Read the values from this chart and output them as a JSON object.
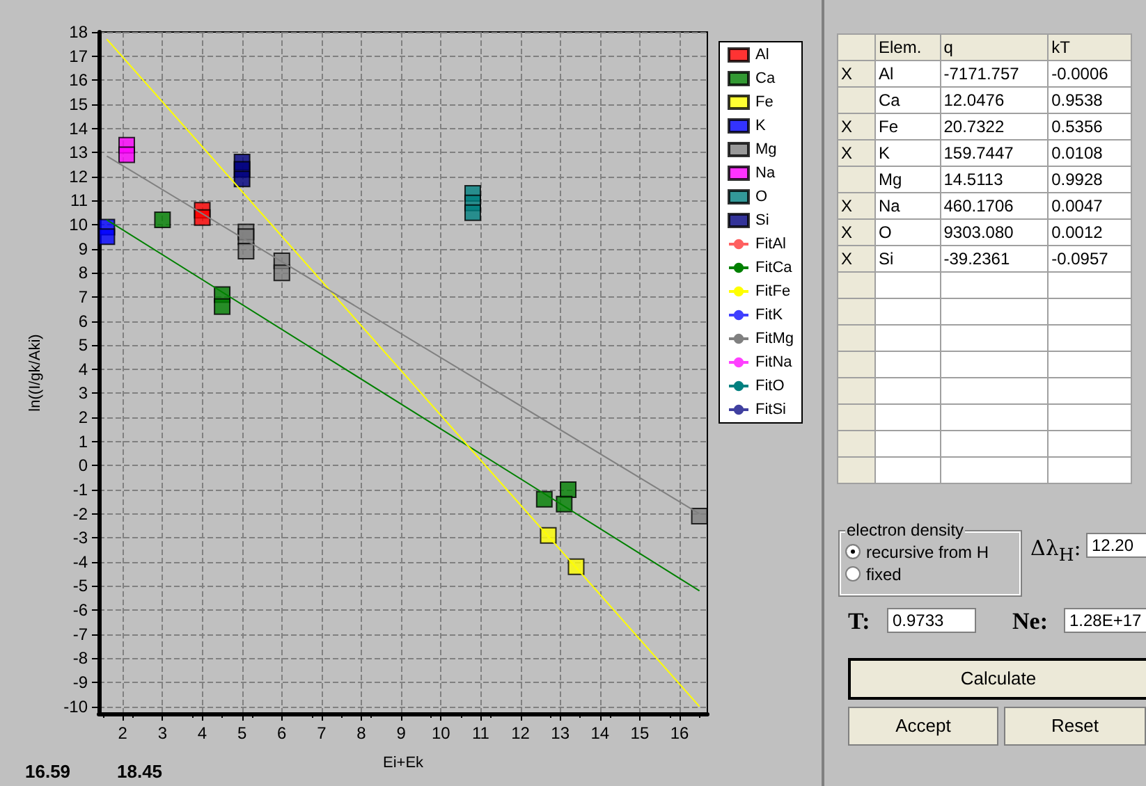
{
  "chart_data": [
    {
      "type": "scatter",
      "xlabel": "Ei+Ek",
      "ylabel": "ln((I/gk/Aki)",
      "xlim": [
        1.4,
        16.7
      ],
      "ylim": [
        -10.3,
        18
      ],
      "xticks": [
        2,
        3,
        4,
        5,
        6,
        7,
        8,
        9,
        10,
        11,
        12,
        13,
        14,
        15,
        16
      ],
      "yticks": [
        -10,
        -9,
        -8,
        -7,
        -6,
        -5,
        -4,
        -3,
        -2,
        -1,
        0,
        1,
        2,
        3,
        4,
        5,
        6,
        7,
        8,
        9,
        10,
        11,
        12,
        13,
        14,
        15,
        16,
        17,
        18
      ],
      "grid": true,
      "legend": "right",
      "marker": "square",
      "annotations": [
        "16.59",
        "18.45"
      ],
      "series": [
        {
          "name": "Al",
          "color": "#ff0000",
          "x": [
            4.0,
            4.0
          ],
          "values": [
            10.6,
            10.3
          ]
        },
        {
          "name": "Ca",
          "color": "#008000",
          "x": [
            3.0,
            4.5,
            4.5,
            12.6,
            13.2,
            13.1
          ],
          "values": [
            10.2,
            7.1,
            6.6,
            -1.4,
            -1.0,
            -1.6
          ]
        },
        {
          "name": "Fe",
          "color": "#ffff00",
          "x": [
            12.7,
            13.4
          ],
          "values": [
            -2.9,
            -4.2
          ]
        },
        {
          "name": "K",
          "color": "#0000ff",
          "x": [
            1.6,
            1.6
          ],
          "values": [
            9.9,
            9.5
          ]
        },
        {
          "name": "Mg",
          "color": "#808080",
          "x": [
            5.1,
            5.1,
            5.1,
            6.0,
            6.0,
            16.5
          ],
          "values": [
            9.7,
            9.5,
            8.9,
            8.5,
            8.0,
            -2.1
          ]
        },
        {
          "name": "Na",
          "color": "#ff00ff",
          "x": [
            2.1,
            2.1
          ],
          "values": [
            13.3,
            12.9
          ]
        },
        {
          "name": "O",
          "color": "#008080",
          "x": [
            10.8,
            10.8,
            10.8
          ],
          "values": [
            11.3,
            10.9,
            10.5
          ]
        },
        {
          "name": "Si",
          "color": "#000080",
          "x": [
            5.0,
            5.0,
            5.0
          ],
          "values": [
            12.6,
            12.3,
            11.9
          ]
        },
        {
          "name": "FitAl",
          "type": "line",
          "marker": "none",
          "color": "#ff6060"
        },
        {
          "name": "FitCa",
          "type": "line",
          "marker": "none",
          "color": "#008000",
          "x": [
            1.6,
            16.5
          ],
          "values": [
            10.2,
            -5.2
          ]
        },
        {
          "name": "FitFe",
          "type": "line",
          "marker": "none",
          "color": "#ffff00",
          "x": [
            1.6,
            16.5
          ],
          "values": [
            17.7,
            -10.0
          ]
        },
        {
          "name": "FitK",
          "type": "line",
          "marker": "none",
          "color": "#4040ff"
        },
        {
          "name": "FitMg",
          "type": "line",
          "marker": "none",
          "color": "#808080",
          "x": [
            1.6,
            16.5
          ],
          "values": [
            12.85,
            -2.0
          ]
        },
        {
          "name": "FitNa",
          "type": "line",
          "marker": "none",
          "color": "#ff40ff"
        },
        {
          "name": "FitO",
          "type": "line",
          "marker": "none",
          "color": "#008080"
        },
        {
          "name": "FitSi",
          "type": "line",
          "marker": "none",
          "color": "#4040a0"
        }
      ]
    },
    {
      "type": "other",
      "annotations": [
        "Elem.",
        "q",
        "kT",
        "X",
        "Al",
        "-7171.757",
        "-0.0006",
        null,
        "Ca",
        "12.0476",
        "0.9538",
        "X",
        "Fe",
        "20.7322",
        "0.5356",
        "X",
        "K",
        "159.7447",
        "0.0108",
        null,
        "Mg",
        "14.5113",
        "0.9928",
        "X",
        "Na",
        "460.1706",
        "0.0047",
        "X",
        "O",
        "9303.080",
        "0.0012",
        "X",
        "Si",
        "-39.2361",
        "-0.0957",
        "electron density",
        "recursive from H",
        "fixed",
        "Δλ$_{H}$:",
        "12.20",
        "T:",
        "0.9733",
        "Ne:",
        "1.28E+17",
        "Calculate",
        "Accept",
        "Reset"
      ]
    }
  ]
}
